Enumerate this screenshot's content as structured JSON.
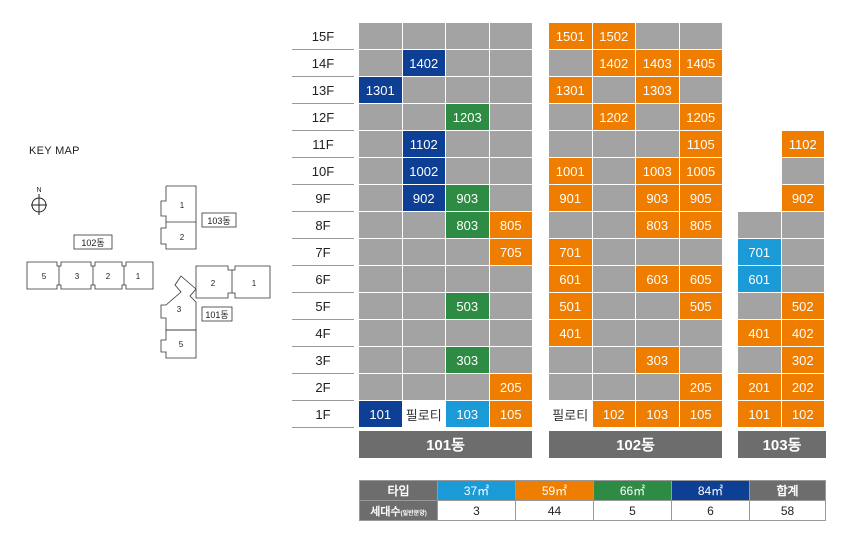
{
  "colors": {
    "empty": "#a3a3a3",
    "s37": "#1b9ad8",
    "s59": "#ef7d00",
    "s66": "#2e8b44",
    "s84": "#0d3f95",
    "pilotis": "#ffffff"
  },
  "keymap": {
    "title": "KEY MAP",
    "north": "N",
    "buildings": [
      {
        "name": "102동",
        "units": [
          "5",
          "3",
          "2",
          "1"
        ]
      },
      {
        "name": "103동",
        "units": [
          "1",
          "2"
        ]
      },
      {
        "name": "101동",
        "units": [
          "2",
          "1",
          "3",
          "5"
        ]
      }
    ]
  },
  "floors": [
    "15F",
    "14F",
    "13F",
    "12F",
    "11F",
    "10F",
    "9F",
    "8F",
    "7F",
    "6F",
    "5F",
    "4F",
    "3F",
    "2F",
    "1F"
  ],
  "buildings": [
    {
      "name": "101동",
      "columns": 4,
      "cells": [
        [
          "e",
          "e",
          "e",
          "e"
        ],
        [
          "e",
          {
            "t": "1402",
            "c": "s84"
          },
          "e",
          "e"
        ],
        [
          {
            "t": "1301",
            "c": "s84"
          },
          "e",
          "e",
          "e"
        ],
        [
          "e",
          "e",
          {
            "t": "1203",
            "c": "s66"
          },
          "e"
        ],
        [
          "e",
          {
            "t": "1102",
            "c": "s84"
          },
          "e",
          "e"
        ],
        [
          "e",
          {
            "t": "1002",
            "c": "s84"
          },
          "e",
          "e"
        ],
        [
          "e",
          {
            "t": "902",
            "c": "s84"
          },
          {
            "t": "903",
            "c": "s66"
          },
          "e"
        ],
        [
          "e",
          "e",
          {
            "t": "803",
            "c": "s66"
          },
          {
            "t": "805",
            "c": "s59"
          }
        ],
        [
          "e",
          "e",
          "e",
          {
            "t": "705",
            "c": "s59"
          }
        ],
        [
          "e",
          "e",
          "e",
          "e"
        ],
        [
          "e",
          "e",
          {
            "t": "503",
            "c": "s66"
          },
          "e"
        ],
        [
          "e",
          "e",
          "e",
          "e"
        ],
        [
          "e",
          "e",
          {
            "t": "303",
            "c": "s66"
          },
          "e"
        ],
        [
          "e",
          "e",
          "e",
          {
            "t": "205",
            "c": "s59"
          }
        ],
        [
          {
            "t": "101",
            "c": "s84"
          },
          {
            "t": "필로티",
            "c": "pilotis"
          },
          {
            "t": "103",
            "c": "s37"
          },
          {
            "t": "105",
            "c": "s59"
          }
        ]
      ]
    },
    {
      "name": "102동",
      "columns": 4,
      "cells": [
        [
          {
            "t": "1501",
            "c": "s59"
          },
          {
            "t": "1502",
            "c": "s59"
          },
          "e",
          "e"
        ],
        [
          "e",
          {
            "t": "1402",
            "c": "s59"
          },
          {
            "t": "1403",
            "c": "s59"
          },
          {
            "t": "1405",
            "c": "s59"
          }
        ],
        [
          {
            "t": "1301",
            "c": "s59"
          },
          "e",
          {
            "t": "1303",
            "c": "s59"
          },
          "e"
        ],
        [
          "e",
          {
            "t": "1202",
            "c": "s59"
          },
          "e",
          {
            "t": "1205",
            "c": "s59"
          }
        ],
        [
          "e",
          "e",
          "e",
          {
            "t": "1105",
            "c": "s59"
          }
        ],
        [
          {
            "t": "1001",
            "c": "s59"
          },
          "e",
          {
            "t": "1003",
            "c": "s59"
          },
          {
            "t": "1005",
            "c": "s59"
          }
        ],
        [
          {
            "t": "901",
            "c": "s59"
          },
          "e",
          {
            "t": "903",
            "c": "s59"
          },
          {
            "t": "905",
            "c": "s59"
          }
        ],
        [
          "e",
          "e",
          {
            "t": "803",
            "c": "s59"
          },
          {
            "t": "805",
            "c": "s59"
          }
        ],
        [
          {
            "t": "701",
            "c": "s59"
          },
          "e",
          "e",
          "e"
        ],
        [
          {
            "t": "601",
            "c": "s59"
          },
          "e",
          {
            "t": "603",
            "c": "s59"
          },
          {
            "t": "605",
            "c": "s59"
          }
        ],
        [
          {
            "t": "501",
            "c": "s59"
          },
          "e",
          "e",
          {
            "t": "505",
            "c": "s59"
          }
        ],
        [
          {
            "t": "401",
            "c": "s59"
          },
          "e",
          "e",
          "e"
        ],
        [
          "e",
          "e",
          {
            "t": "303",
            "c": "s59"
          },
          "e"
        ],
        [
          "e",
          "e",
          "e",
          {
            "t": "205",
            "c": "s59"
          }
        ],
        [
          {
            "t": "필로티",
            "c": "pilotis"
          },
          {
            "t": "102",
            "c": "s59"
          },
          {
            "t": "103",
            "c": "s59"
          },
          {
            "t": "105",
            "c": "s59"
          }
        ]
      ]
    },
    {
      "name": "103동",
      "columns": 2,
      "cells": [
        null,
        null,
        null,
        null,
        [
          "n",
          {
            "t": "1102",
            "c": "s59"
          }
        ],
        [
          "n",
          "e"
        ],
        [
          "n",
          {
            "t": "902",
            "c": "s59"
          }
        ],
        [
          "e",
          "e"
        ],
        [
          {
            "t": "701",
            "c": "s37"
          },
          "e"
        ],
        [
          {
            "t": "601",
            "c": "s37"
          },
          "e"
        ],
        [
          "e",
          {
            "t": "502",
            "c": "s59"
          }
        ],
        [
          {
            "t": "401",
            "c": "s59"
          },
          {
            "t": "402",
            "c": "s59"
          }
        ],
        [
          "e",
          {
            "t": "302",
            "c": "s59"
          }
        ],
        [
          {
            "t": "201",
            "c": "s59"
          },
          {
            "t": "202",
            "c": "s59"
          }
        ],
        [
          {
            "t": "101",
            "c": "s59"
          },
          {
            "t": "102",
            "c": "s59"
          }
        ]
      ]
    }
  ],
  "legend": {
    "header_label": "타입",
    "types": [
      {
        "label": "37㎡",
        "color": "s37",
        "count": "3"
      },
      {
        "label": "59㎡",
        "color": "s59",
        "count": "44"
      },
      {
        "label": "66㎡",
        "color": "s66",
        "count": "5"
      },
      {
        "label": "84㎡",
        "color": "s84",
        "count": "6"
      }
    ],
    "total_label": "합계",
    "total_count": "58",
    "row_label": "세대수",
    "row_label_small": "(일반분양)"
  }
}
